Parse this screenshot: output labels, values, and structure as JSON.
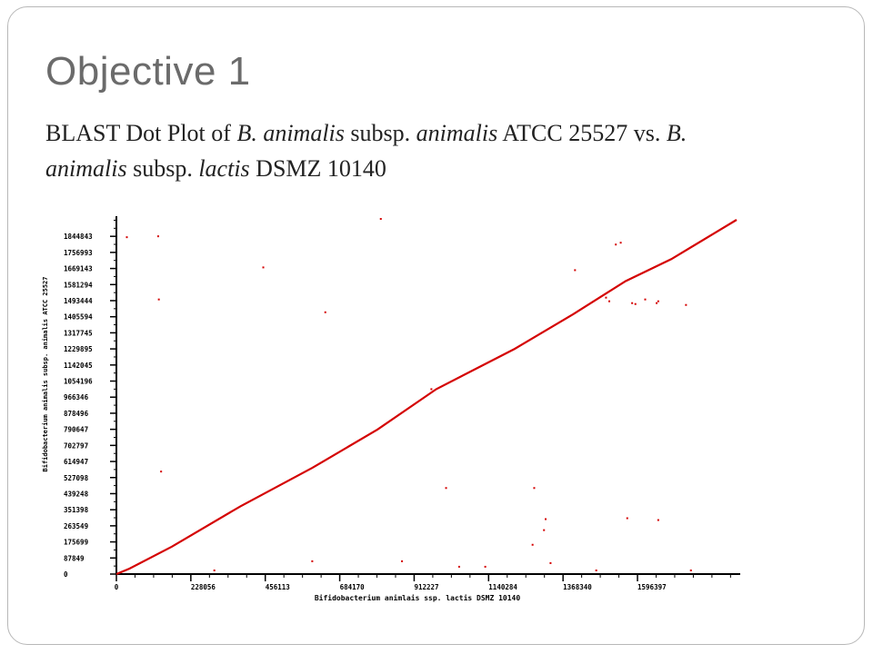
{
  "slide": {
    "title": "Objective 1",
    "subtitle_parts": [
      {
        "text": "BLAST Dot Plot of ",
        "italic": false
      },
      {
        "text": "B. animalis",
        "italic": true
      },
      {
        "text": " subsp. ",
        "italic": false
      },
      {
        "text": "animalis",
        "italic": true
      },
      {
        "text": " ATCC 25527 vs. ",
        "italic": false
      },
      {
        "text": "B. animalis",
        "italic": true
      },
      {
        "text": " subsp. ",
        "italic": false
      },
      {
        "text": "lactis",
        "italic": true
      },
      {
        "text": " DSMZ 10140",
        "italic": false
      }
    ]
  },
  "chart_data": {
    "type": "scatter",
    "xlabel": "Bifidobacterium animlais ssp. lactis DSMZ 10140",
    "ylabel": "Bifidobacterium animalis subsp. animalis ATCC 25527",
    "x_ticks": [
      0,
      228056,
      456113,
      684170,
      912227,
      1140284,
      1368340,
      1596397
    ],
    "y_ticks": [
      0,
      87849,
      175699,
      263549,
      351398,
      439248,
      527098,
      614947,
      702797,
      790647,
      878496,
      966346,
      1054196,
      1142045,
      1229895,
      1317745,
      1405594,
      1493444,
      1581294,
      1669143,
      1756993,
      1844843
    ],
    "xlim": [
      0,
      1900000
    ],
    "ylim": [
      0,
      1935000
    ],
    "colors": {
      "dots": "#d40000",
      "axis": "#000000"
    },
    "series": [
      {
        "kind": "diagonal",
        "x": [
          0,
          40000,
          170000,
          380000,
          600000,
          800000,
          980000,
          1220000,
          1400000,
          1560000,
          1700000,
          1900000
        ],
        "y": [
          0,
          30000,
          150000,
          370000,
          580000,
          790000,
          1010000,
          1230000,
          1420000,
          1600000,
          1720000,
          1935000
        ]
      },
      {
        "kind": "scattered",
        "x": [
          32000,
          128000,
          130000,
          137000,
          450000,
          640000,
          600000,
          810000,
          875000,
          965000,
          1010000,
          1050000,
          1130000,
          1280000,
          1275000,
          1310000,
          1330000,
          1315000,
          1405000,
          1470000,
          1510000,
          1530000,
          1545000,
          1580000,
          1620000,
          1655000,
          1745000,
          1660000,
          1660000,
          1565000,
          1760000,
          1590000,
          300000,
          1500000
        ],
        "y": [
          1840000,
          1845000,
          1500000,
          560000,
          1675000,
          1430000,
          70000,
          1940000,
          70000,
          1010000,
          470000,
          40000,
          40000,
          470000,
          160000,
          240000,
          60000,
          300000,
          1660000,
          20000,
          1490000,
          1800000,
          1810000,
          1480000,
          1500000,
          1480000,
          1470000,
          1490000,
          295000,
          305000,
          20000,
          1475000,
          20000,
          1510000
        ]
      }
    ]
  }
}
